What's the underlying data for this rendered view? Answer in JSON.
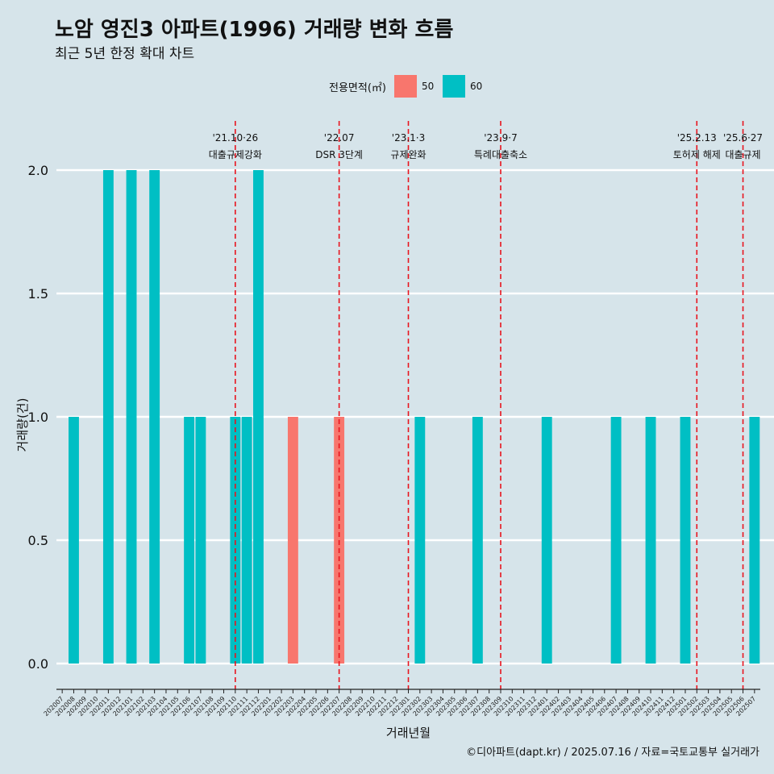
{
  "title": "노암 영진3 아파트(1996) 거래량 변화 흐름",
  "subtitle": "최근 5년 한정 확대 차트",
  "caption": "©디아파트(dapt.kr) / 2025.07.16 / 자료=국토교통부 실거래가",
  "legend": {
    "title": "전용면적(㎡)",
    "items": [
      {
        "label": "50",
        "color": "#f8766d"
      },
      {
        "label": "60",
        "color": "#00bfc4"
      }
    ]
  },
  "chart_data": {
    "type": "bar",
    "title": "노암 영진3 아파트(1996) 거래량 변화 흐름",
    "subtitle": "최근 5년 한정 확대 차트",
    "xlabel": "거래년월",
    "ylabel": "거래량(건)",
    "ylim": [
      0,
      2.1
    ],
    "yticks": [
      "0.0",
      "0.5",
      "1.0",
      "1.5",
      "2.0"
    ],
    "categories": [
      "202007",
      "202008",
      "202009",
      "202010",
      "202011",
      "202012",
      "202101",
      "202102",
      "202103",
      "202104",
      "202105",
      "202106",
      "202107",
      "202108",
      "202109",
      "202110",
      "202111",
      "202112",
      "202201",
      "202202",
      "202203",
      "202204",
      "202205",
      "202206",
      "202207",
      "202208",
      "202209",
      "202210",
      "202211",
      "202212",
      "202301",
      "202302",
      "202303",
      "202304",
      "202305",
      "202306",
      "202307",
      "202308",
      "202309",
      "202310",
      "202311",
      "202312",
      "202401",
      "202402",
      "202403",
      "202404",
      "202405",
      "202406",
      "202407",
      "202408",
      "202409",
      "202410",
      "202411",
      "202412",
      "202501",
      "202502",
      "202503",
      "202504",
      "202505",
      "202506",
      "202507"
    ],
    "series": [
      {
        "name": "50",
        "color": "#f8766d",
        "values": [
          0,
          0,
          0,
          0,
          0,
          0,
          0,
          0,
          0,
          0,
          0,
          0,
          0,
          0,
          0,
          0,
          0,
          0,
          0,
          0,
          1,
          0,
          0,
          0,
          1,
          0,
          0,
          0,
          0,
          0,
          0,
          0,
          0,
          0,
          0,
          0,
          0,
          0,
          0,
          0,
          0,
          0,
          0,
          0,
          0,
          0,
          0,
          0,
          0,
          0,
          0,
          0,
          0,
          0,
          0,
          0,
          0,
          0,
          0,
          0,
          0
        ]
      },
      {
        "name": "60",
        "color": "#00bfc4",
        "values": [
          0,
          1,
          0,
          0,
          2,
          0,
          2,
          0,
          2,
          0,
          0,
          1,
          1,
          0,
          0,
          1,
          1,
          2,
          0,
          0,
          0,
          0,
          0,
          0,
          0,
          0,
          0,
          0,
          0,
          0,
          0,
          1,
          0,
          0,
          0,
          0,
          1,
          0,
          0,
          0,
          0,
          0,
          1,
          0,
          0,
          0,
          0,
          0,
          1,
          0,
          0,
          1,
          0,
          0,
          1,
          0,
          0,
          0,
          0,
          0,
          1
        ]
      }
    ],
    "events": [
      {
        "x": "202110",
        "date": "'21.10·26",
        "label": "대출규제강화"
      },
      {
        "x": "202207",
        "date": "'22.07",
        "label": "DSR 3단계"
      },
      {
        "x": "202301",
        "date": "'23.1·3",
        "label": "규제완화"
      },
      {
        "x": "202309",
        "date": "'23.9·7",
        "label": "특례대출축소"
      },
      {
        "x": "202502",
        "date": "'25.2.13",
        "label": "토허제 해제"
      },
      {
        "x": "202506",
        "date": "'25.6·27",
        "label": "대출규제"
      }
    ],
    "grid": true,
    "legend_position": "top"
  }
}
